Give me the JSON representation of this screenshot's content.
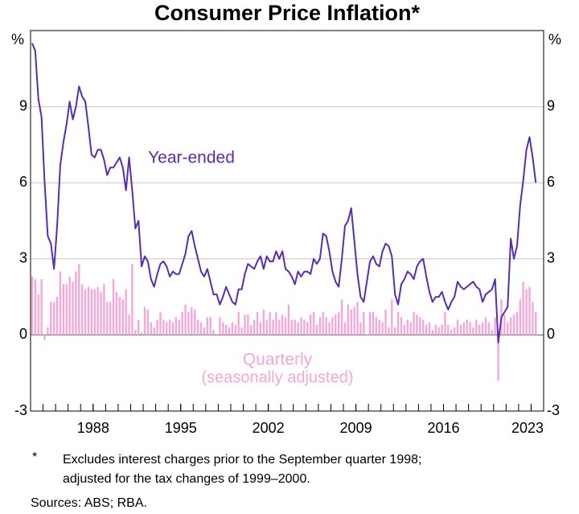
{
  "chart_data": {
    "type": "combo",
    "title": "Consumer Price Inflation*",
    "ylabel": "%",
    "y2label": "%",
    "annotation": "(seasonally adjusted)",
    "footnote_marker": "*",
    "footnote_lines": [
      "Excludes interest charges prior to the September quarter 1998;",
      "adjusted for the tax changes of 1999–2000."
    ],
    "sources": "Sources: ABS; RBA.",
    "xlim": [
      1983,
      2024
    ],
    "xticks": [
      1988,
      1995,
      2002,
      2009,
      2016,
      2023
    ],
    "ylim": [
      -3,
      12
    ],
    "yticks": [
      -3,
      0,
      3,
      6,
      9
    ],
    "y2lim": [
      -3,
      12
    ],
    "y2ticks": [
      -3,
      0,
      3,
      6,
      9
    ],
    "grid": true,
    "x": [
      1983.125,
      1983.375,
      1983.625,
      1983.875,
      1984.125,
      1984.375,
      1984.625,
      1984.875,
      1985.125,
      1985.375,
      1985.625,
      1985.875,
      1986.125,
      1986.375,
      1986.625,
      1986.875,
      1987.125,
      1987.375,
      1987.625,
      1987.875,
      1988.125,
      1988.375,
      1988.625,
      1988.875,
      1989.125,
      1989.375,
      1989.625,
      1989.875,
      1990.125,
      1990.375,
      1990.625,
      1990.875,
      1991.125,
      1991.375,
      1991.625,
      1991.875,
      1992.125,
      1992.375,
      1992.625,
      1992.875,
      1993.125,
      1993.375,
      1993.625,
      1993.875,
      1994.125,
      1994.375,
      1994.625,
      1994.875,
      1995.125,
      1995.375,
      1995.625,
      1995.875,
      1996.125,
      1996.375,
      1996.625,
      1996.875,
      1997.125,
      1997.375,
      1997.625,
      1997.875,
      1998.125,
      1998.375,
      1998.625,
      1998.875,
      1999.125,
      1999.375,
      1999.625,
      1999.875,
      2000.125,
      2000.375,
      2000.625,
      2000.875,
      2001.125,
      2001.375,
      2001.625,
      2001.875,
      2002.125,
      2002.375,
      2002.625,
      2002.875,
      2003.125,
      2003.375,
      2003.625,
      2003.875,
      2004.125,
      2004.375,
      2004.625,
      2004.875,
      2005.125,
      2005.375,
      2005.625,
      2005.875,
      2006.125,
      2006.375,
      2006.625,
      2006.875,
      2007.125,
      2007.375,
      2007.625,
      2007.875,
      2008.125,
      2008.375,
      2008.625,
      2008.875,
      2009.125,
      2009.375,
      2009.625,
      2009.875,
      2010.125,
      2010.375,
      2010.625,
      2010.875,
      2011.125,
      2011.375,
      2011.625,
      2011.875,
      2012.125,
      2012.375,
      2012.625,
      2012.875,
      2013.125,
      2013.375,
      2013.625,
      2013.875,
      2014.125,
      2014.375,
      2014.625,
      2014.875,
      2015.125,
      2015.375,
      2015.625,
      2015.875,
      2016.125,
      2016.375,
      2016.625,
      2016.875,
      2017.125,
      2017.375,
      2017.625,
      2017.875,
      2018.125,
      2018.375,
      2018.625,
      2018.875,
      2019.125,
      2019.375,
      2019.625,
      2019.875,
      2020.125,
      2020.375,
      2020.625,
      2020.875,
      2021.125,
      2021.375,
      2021.625,
      2021.875,
      2022.125,
      2022.375,
      2022.625,
      2022.875,
      2023.125,
      2023.375
    ],
    "series": [
      {
        "name": "Quarterly",
        "type": "bar",
        "color": "#f4a6da",
        "values": [
          2.3,
          2.2,
          1.6,
          2.2,
          -0.2,
          0.3,
          1.3,
          1.3,
          1.5,
          2.5,
          2.0,
          2.0,
          2.3,
          2.1,
          2.5,
          2.8,
          2.0,
          1.8,
          1.9,
          1.8,
          1.8,
          1.9,
          1.7,
          2.0,
          1.3,
          1.3,
          2.2,
          1.7,
          1.5,
          1.4,
          1.8,
          0.8,
          2.8,
          0.2,
          0.6,
          0.1,
          1.1,
          1.0,
          0.5,
          0.3,
          0.6,
          0.9,
          0.6,
          0.5,
          0.6,
          0.5,
          0.7,
          0.6,
          0.9,
          1.2,
          0.9,
          1.1,
          1.0,
          0.6,
          0.5,
          0.3,
          0.7,
          0.7,
          0.2,
          0.0,
          0.7,
          0.5,
          0.4,
          0.3,
          0.5,
          0.4,
          0.9,
          0.3,
          0.8,
          0.8,
          0.4,
          0.6,
          0.9,
          0.5,
          1.0,
          0.6,
          0.9,
          0.6,
          0.9,
          0.6,
          0.8,
          0.7,
          1.2,
          0.6,
          0.6,
          0.5,
          0.7,
          0.6,
          0.5,
          0.8,
          0.9,
          0.4,
          0.7,
          0.9,
          0.7,
          0.5,
          0.7,
          0.8,
          0.9,
          1.4,
          0.5,
          1.2,
          1.0,
          1.1,
          1.3,
          0.5,
          0.9,
          0.0,
          0.9,
          0.9,
          0.7,
          0.6,
          0.5,
          1.0,
          0.3,
          1.4,
          0.3,
          0.9,
          0.7,
          0.4,
          0.6,
          0.5,
          0.9,
          0.8,
          0.7,
          0.6,
          0.4,
          0.5,
          0.2,
          0.4,
          0.3,
          0.4,
          0.9,
          0.4,
          0.2,
          0.3,
          0.6,
          0.4,
          0.5,
          0.6,
          0.5,
          0.3,
          0.6,
          0.4,
          0.5,
          0.7,
          0.5,
          0.2,
          0.7,
          -1.8,
          1.4,
          0.8,
          0.5,
          0.7,
          0.8,
          0.9,
          1.4,
          2.1,
          1.8,
          1.9,
          1.3,
          0.9
        ]
      },
      {
        "name": "Year-ended",
        "type": "line",
        "color": "#5a2bb5",
        "values": [
          11.5,
          11.2,
          9.3,
          8.6,
          6.0,
          3.9,
          3.6,
          2.6,
          4.3,
          6.7,
          7.6,
          8.3,
          9.2,
          8.5,
          9.0,
          9.8,
          9.4,
          9.2,
          8.2,
          7.1,
          7.0,
          7.3,
          7.3,
          6.9,
          6.3,
          6.6,
          6.6,
          6.8,
          7.0,
          6.6,
          5.7,
          7.0,
          5.7,
          4.2,
          4.5,
          2.7,
          3.1,
          2.9,
          2.2,
          1.9,
          2.4,
          2.8,
          2.9,
          2.7,
          2.3,
          2.5,
          2.4,
          2.4,
          2.8,
          3.2,
          3.9,
          4.1,
          3.5,
          3.0,
          2.5,
          2.3,
          2.6,
          2.1,
          1.6,
          1.6,
          1.2,
          1.5,
          1.9,
          1.6,
          1.3,
          1.2,
          1.8,
          1.8,
          2.4,
          2.8,
          2.7,
          2.6,
          2.9,
          3.1,
          2.6,
          3.1,
          2.9,
          2.9,
          3.3,
          3.0,
          3.3,
          2.6,
          2.5,
          2.3,
          2.0,
          2.5,
          2.3,
          2.5,
          2.5,
          2.4,
          3.0,
          2.8,
          3.0,
          4.0,
          3.9,
          3.3,
          2.5,
          2.1,
          1.9,
          3.0,
          4.3,
          4.5,
          5.0,
          3.7,
          2.4,
          1.5,
          1.3,
          2.1,
          2.9,
          3.1,
          2.8,
          2.7,
          3.3,
          3.6,
          3.5,
          3.1,
          1.6,
          1.2,
          2.0,
          2.2,
          2.5,
          2.4,
          2.2,
          2.7,
          2.9,
          3.0,
          2.3,
          1.7,
          1.3,
          1.5,
          1.5,
          1.7,
          1.3,
          1.0,
          1.3,
          1.5,
          2.1,
          1.9,
          1.8,
          1.9,
          2.0,
          2.1,
          1.9,
          1.8,
          1.3,
          1.6,
          1.7,
          1.8,
          2.2,
          -0.3,
          0.7,
          0.9,
          1.1,
          3.8,
          3.0,
          3.5,
          5.1,
          6.1,
          7.3,
          7.8,
          7.0,
          6.0
        ]
      }
    ]
  }
}
